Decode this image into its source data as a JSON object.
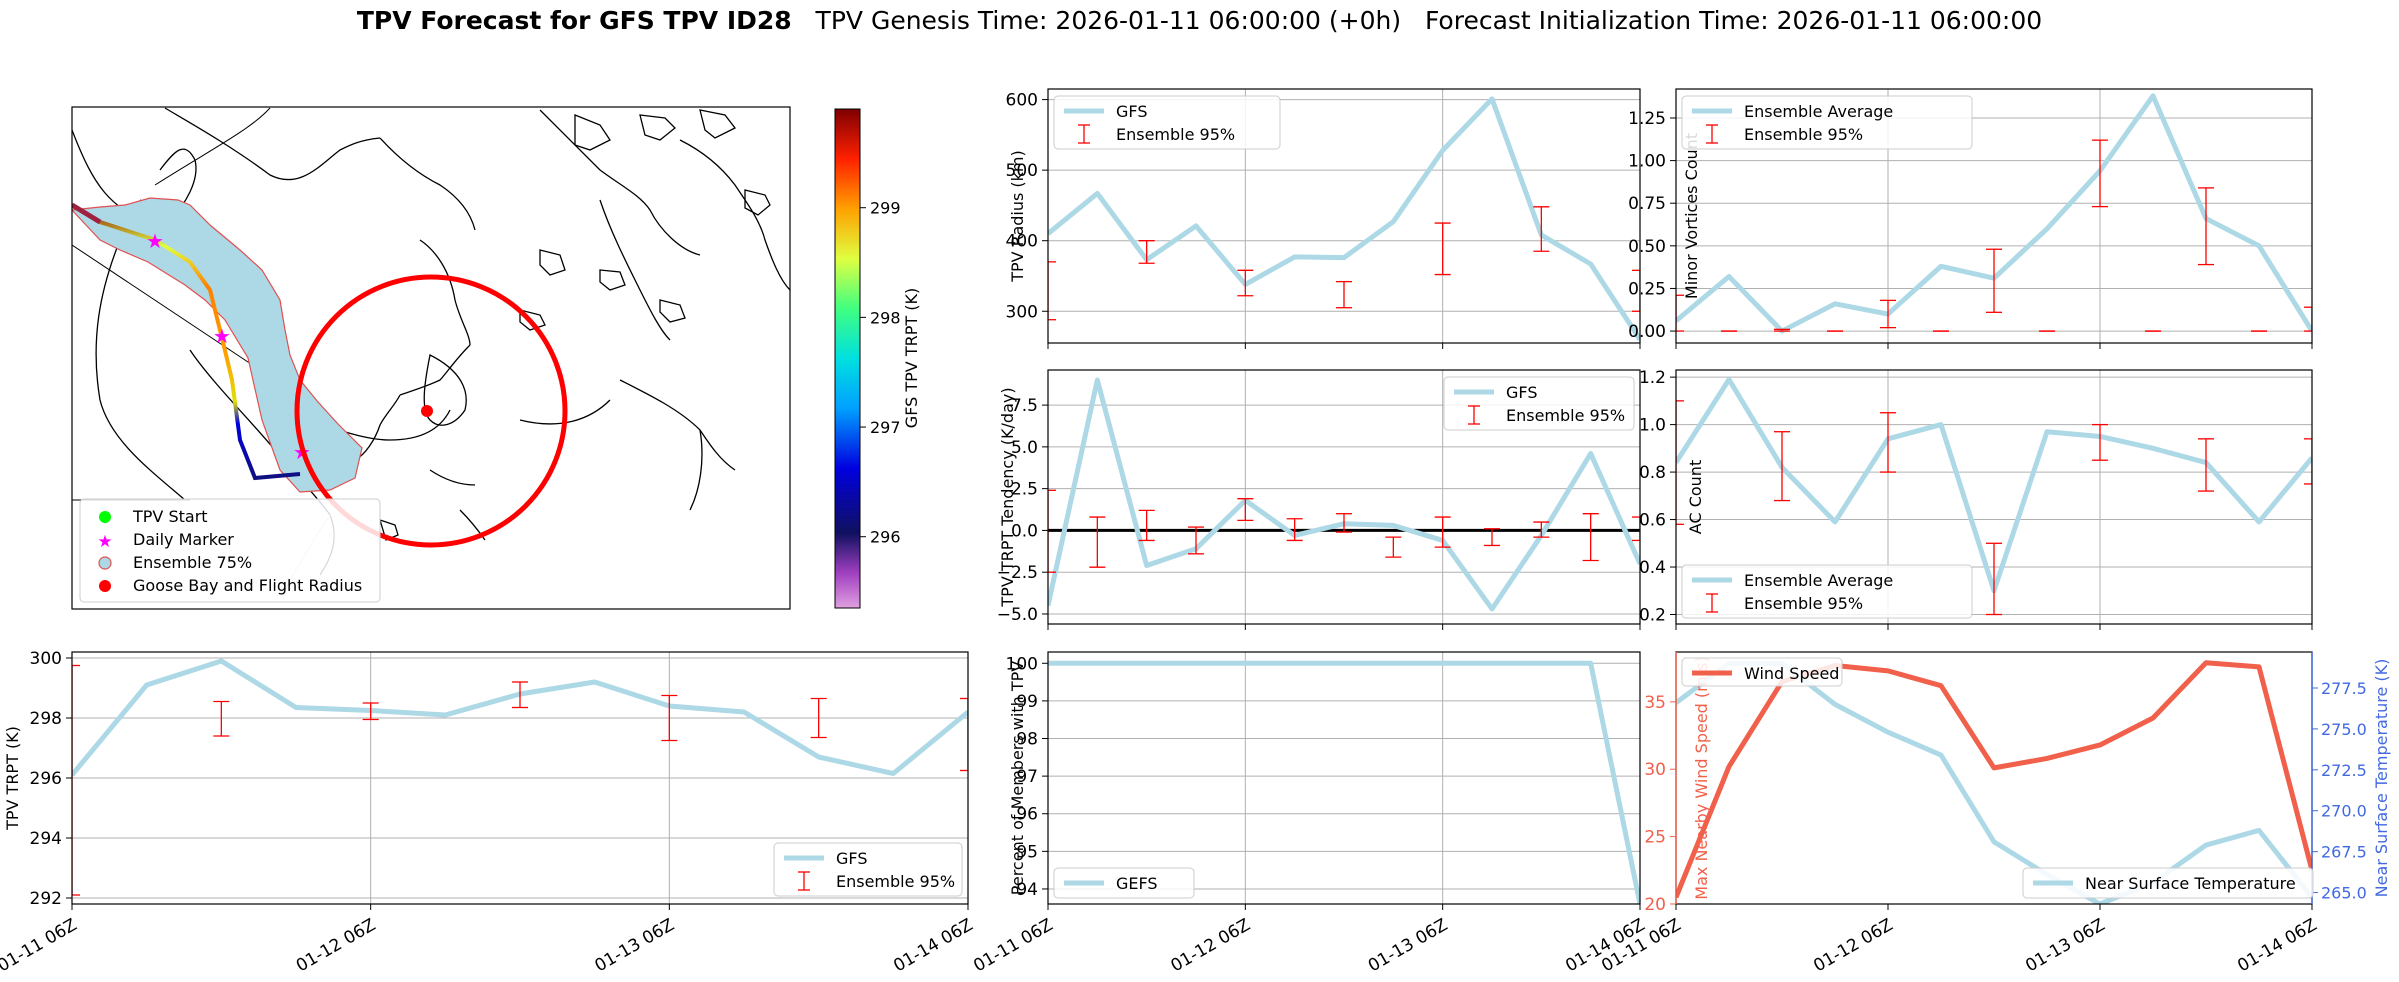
{
  "title": {
    "bold": "TPV Forecast for GFS TPV ID28",
    "genesis": "TPV Genesis Time: 2026-01-11 06:00:00 (+0h)",
    "init": "Forecast Initialization Time: 2026-01-11 06:00:00"
  },
  "colors": {
    "gfs_line": "#add8e6",
    "errorbar": "#ff0000",
    "wind": "#f0604a",
    "temp_axis": "#4169e1",
    "cone_fill": "#add8e6",
    "flight_radius": "#ff0000",
    "daily_marker": "#ff00ff",
    "tpv_start": "#00ff00"
  },
  "map": {
    "legend": [
      "TPV Start",
      "Daily Marker",
      "Ensemble 75%",
      "Goose Bay and Flight Radius"
    ],
    "colorbar_label": "GFS TPV TRPT (K)",
    "colorbar_ticks": [
      "296",
      "297",
      "298",
      "299"
    ],
    "colorbar_range": [
      295.35,
      299.9
    ]
  },
  "chart_data": [
    {
      "id": "trpt",
      "type": "line",
      "ylabel": "TPV TRPT (K)",
      "ylim": [
        291.8,
        300.2
      ],
      "yticks": [
        292,
        294,
        296,
        298,
        300
      ],
      "xlim": [
        0,
        72
      ],
      "xticks": [
        0,
        24,
        48,
        72
      ],
      "xticklabels": [
        "01-11 06Z",
        "01-12 06Z",
        "01-13 06Z",
        "01-14 06Z"
      ],
      "series": [
        {
          "name": "GFS",
          "x": [
            0,
            6,
            12,
            18,
            24,
            30,
            36,
            42,
            48,
            54,
            60,
            66,
            72
          ],
          "y": [
            296.1,
            299.1,
            299.9,
            298.35,
            298.25,
            298.1,
            298.8,
            299.2,
            298.4,
            298.2,
            296.7,
            296.15,
            298.2
          ]
        }
      ],
      "errorbars": {
        "name": "Ensemble 95%",
        "x": [
          0,
          12,
          24,
          36,
          48,
          60,
          72
        ],
        "lo": [
          292.1,
          297.4,
          297.95,
          298.35,
          297.25,
          297.35,
          296.25
        ],
        "hi": [
          299.75,
          298.55,
          298.5,
          299.2,
          298.75,
          298.65,
          298.65
        ]
      },
      "legend": "lower right",
      "grid": true
    },
    {
      "id": "radius",
      "type": "line",
      "ylabel": "TPV Radius (km)",
      "ylim": [
        255,
        615
      ],
      "yticks": [
        300,
        400,
        500,
        600
      ],
      "xlim": [
        0,
        72
      ],
      "xticks": [
        0,
        24,
        48,
        72
      ],
      "xticklabels": [],
      "series": [
        {
          "name": "GFS",
          "x": [
            0,
            6,
            12,
            18,
            24,
            30,
            36,
            42,
            48,
            54,
            60,
            66,
            72
          ],
          "y": [
            410,
            467,
            373,
            421,
            338,
            377,
            376,
            427,
            528,
            601,
            408,
            367,
            260
          ]
        }
      ],
      "errorbars": {
        "name": "Ensemble 95%",
        "x": [
          0,
          12,
          24,
          36,
          48,
          60,
          72
        ],
        "lo": [
          288,
          368,
          322,
          305,
          352,
          385,
          300
        ],
        "hi": [
          370,
          400,
          358,
          342,
          425,
          448,
          358
        ]
      },
      "legend": "upper left",
      "grid": true
    },
    {
      "id": "tendency",
      "type": "line",
      "ylabel": "TPV TRPT Tendency (K/day)",
      "ylim": [
        -5.6,
        9.6
      ],
      "yticks": [
        -5.0,
        -2.5,
        0.0,
        2.5,
        5.0,
        7.5
      ],
      "yticklabels": [
        "−5.0",
        "−2.5",
        "0.0",
        "2.5",
        "5.0",
        "7.5"
      ],
      "xlim": [
        0,
        72
      ],
      "xticks": [
        0,
        24,
        48,
        72
      ],
      "xticklabels": [],
      "zero_line": true,
      "series": [
        {
          "name": "GFS",
          "x": [
            0,
            6,
            12,
            18,
            24,
            30,
            36,
            42,
            48,
            54,
            60,
            66,
            72
          ],
          "y": [
            -4.5,
            9.0,
            -2.1,
            -1.1,
            1.8,
            -0.3,
            0.4,
            0.3,
            -0.6,
            -4.7,
            -0.3,
            4.6,
            -2.0
          ]
        }
      ],
      "errorbars": {
        "name": "Ensemble 95%",
        "x": [
          0,
          6,
          12,
          18,
          24,
          30,
          36,
          42,
          48,
          54,
          60,
          66,
          72
        ],
        "lo": [
          -2.5,
          -2.2,
          -0.6,
          -1.4,
          0.6,
          -0.6,
          -0.1,
          -1.6,
          -1.0,
          -0.9,
          -0.4,
          -1.8,
          -0.6
        ],
        "hi": [
          2.4,
          0.8,
          1.2,
          0.2,
          1.9,
          0.7,
          1.0,
          -0.4,
          0.8,
          0.1,
          0.5,
          1.0,
          0.8
        ]
      },
      "legend": "upper right",
      "grid": true
    },
    {
      "id": "percent",
      "type": "line",
      "ylabel": "Percent of Members with TPV",
      "ylim": [
        93.6,
        100.3
      ],
      "yticks": [
        94,
        95,
        96,
        97,
        98,
        99,
        100
      ],
      "xlim": [
        0,
        72
      ],
      "xticks": [
        0,
        24,
        48,
        72
      ],
      "xticklabels": [
        "01-11 06Z",
        "01-12 06Z",
        "01-13 06Z",
        "01-14 06Z"
      ],
      "series": [
        {
          "name": "GEFS",
          "x": [
            0,
            6,
            12,
            18,
            24,
            30,
            36,
            42,
            48,
            54,
            60,
            66,
            72
          ],
          "y": [
            100,
            100,
            100,
            100,
            100,
            100,
            100,
            100,
            100,
            100,
            100,
            100,
            93.6
          ]
        }
      ],
      "legend": "lower left",
      "grid": true
    },
    {
      "id": "minor",
      "type": "line",
      "ylabel": "Minor Vortices Count",
      "ylim": [
        -0.07,
        1.42
      ],
      "yticks": [
        0.0,
        0.25,
        0.5,
        0.75,
        1.0,
        1.25
      ],
      "yticklabels": [
        "0.00",
        "0.25",
        "0.50",
        "0.75",
        "1.00",
        "1.25"
      ],
      "xlim": [
        0,
        72
      ],
      "xticks": [
        0,
        24,
        48,
        72
      ],
      "xticklabels": [],
      "series": [
        {
          "name": "Ensemble Average",
          "x": [
            0,
            6,
            12,
            18,
            24,
            30,
            36,
            42,
            48,
            54,
            60,
            66,
            72
          ],
          "y": [
            0.06,
            0.32,
            0.0,
            0.16,
            0.1,
            0.38,
            0.31,
            0.6,
            0.94,
            1.38,
            0.66,
            0.5,
            0.0
          ]
        }
      ],
      "errorbars": {
        "name": "Ensemble 95%",
        "x": [
          0,
          6,
          12,
          18,
          24,
          30,
          36,
          42,
          48,
          54,
          60,
          66,
          72
        ],
        "lo": [
          0.0,
          0.0,
          0.0,
          0.0,
          0.02,
          0.0,
          0.11,
          0.0,
          0.73,
          0.0,
          0.39,
          0.0,
          0.0
        ],
        "hi": [
          0.21,
          0.0,
          0.01,
          0.0,
          0.18,
          0.0,
          0.48,
          0.0,
          1.12,
          0.0,
          0.84,
          0.0,
          0.14
        ]
      },
      "legend": "upper left",
      "grid": true
    },
    {
      "id": "ac",
      "type": "line",
      "ylabel": "AC Count",
      "ylim": [
        0.16,
        1.23
      ],
      "yticks": [
        0.2,
        0.4,
        0.6,
        0.8,
        1.0,
        1.2
      ],
      "yticklabels": [
        "0.2",
        "0.4",
        "0.6",
        "0.8",
        "1.0",
        "1.2"
      ],
      "xlim": [
        0,
        72
      ],
      "xticks": [
        0,
        24,
        48,
        72
      ],
      "xticklabels": [],
      "series": [
        {
          "name": "Ensemble Average",
          "x": [
            0,
            6,
            12,
            18,
            24,
            30,
            36,
            42,
            48,
            54,
            60,
            66,
            72
          ],
          "y": [
            0.84,
            1.19,
            0.82,
            0.59,
            0.94,
            1.0,
            0.3,
            0.97,
            0.95,
            0.9,
            0.84,
            0.59,
            0.86
          ]
        }
      ],
      "errorbars": {
        "name": "Ensemble 95%",
        "x": [
          0,
          12,
          24,
          36,
          48,
          60,
          72
        ],
        "lo": [
          0.58,
          0.68,
          0.8,
          0.2,
          0.85,
          0.72,
          0.75
        ],
        "hi": [
          1.1,
          0.97,
          1.05,
          0.5,
          1.0,
          0.94,
          0.94
        ]
      },
      "legend": "lower left",
      "grid": true
    },
    {
      "id": "wind",
      "type": "line",
      "ylabel": "Max Nearby Wind Speed (m/s)",
      "y2label": "Near Surface Temperature (K)",
      "ylim": [
        20,
        38.7
      ],
      "yticks": [
        20,
        25,
        30,
        35
      ],
      "y2lim": [
        264.3,
        279.7
      ],
      "y2ticks": [
        265.0,
        267.5,
        270.0,
        272.5,
        275.0,
        277.5
      ],
      "y2ticklabels": [
        "265.0",
        "267.5",
        "270.0",
        "272.5",
        "275.0",
        "277.5"
      ],
      "xlim": [
        0,
        72
      ],
      "xticks": [
        0,
        24,
        48,
        72
      ],
      "xticklabels": [
        "01-11 06Z",
        "01-12 06Z",
        "01-13 06Z",
        "01-14 06Z"
      ],
      "series": [
        {
          "name": "Wind Speed",
          "axis": "left",
          "x": [
            0,
            6,
            12,
            18,
            24,
            30,
            36,
            42,
            48,
            54,
            60,
            66,
            72
          ],
          "y": [
            20.5,
            30.2,
            36.5,
            37.7,
            37.3,
            36.2,
            30.1,
            30.8,
            31.8,
            33.8,
            37.9,
            37.6,
            22.5
          ]
        },
        {
          "name": "Near Surface Temperature",
          "axis": "right",
          "x": [
            0,
            6,
            12,
            18,
            24,
            30,
            36,
            42,
            48,
            54,
            60,
            66,
            72
          ],
          "y": [
            276.6,
            279.0,
            279.0,
            276.5,
            274.8,
            273.4,
            268.1,
            266.1,
            264.3,
            265.6,
            267.9,
            268.8,
            264.7
          ]
        }
      ],
      "legend": [
        "upper left",
        "lower right"
      ],
      "grid": false
    }
  ]
}
